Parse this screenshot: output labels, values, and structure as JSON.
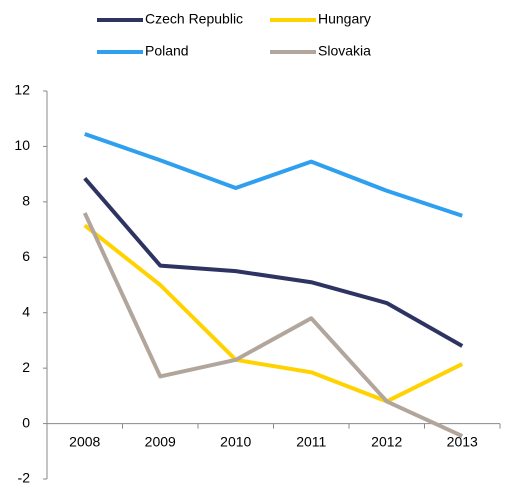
{
  "chart_data": {
    "type": "line",
    "categories": [
      "2008",
      "2009",
      "2010",
      "2011",
      "2012",
      "2013"
    ],
    "series": [
      {
        "name": "Czech Republic",
        "color": "#2e3462",
        "values": [
          8.85,
          5.7,
          5.5,
          5.1,
          4.35,
          2.8
        ]
      },
      {
        "name": "Hungary",
        "color": "#ffd200",
        "values": [
          7.15,
          5.0,
          2.3,
          1.85,
          0.8,
          2.15
        ]
      },
      {
        "name": "Poland",
        "color": "#2f9ff0",
        "values": [
          10.45,
          9.5,
          8.5,
          9.45,
          8.4,
          7.5
        ]
      },
      {
        "name": "Slovakia",
        "color": "#b2a69c",
        "values": [
          7.6,
          1.7,
          2.3,
          3.8,
          0.8,
          -0.45
        ]
      }
    ],
    "ylim": [
      -2,
      12
    ],
    "yticks": [
      -2,
      0,
      2,
      4,
      6,
      8,
      10,
      12
    ],
    "grid": false
  }
}
